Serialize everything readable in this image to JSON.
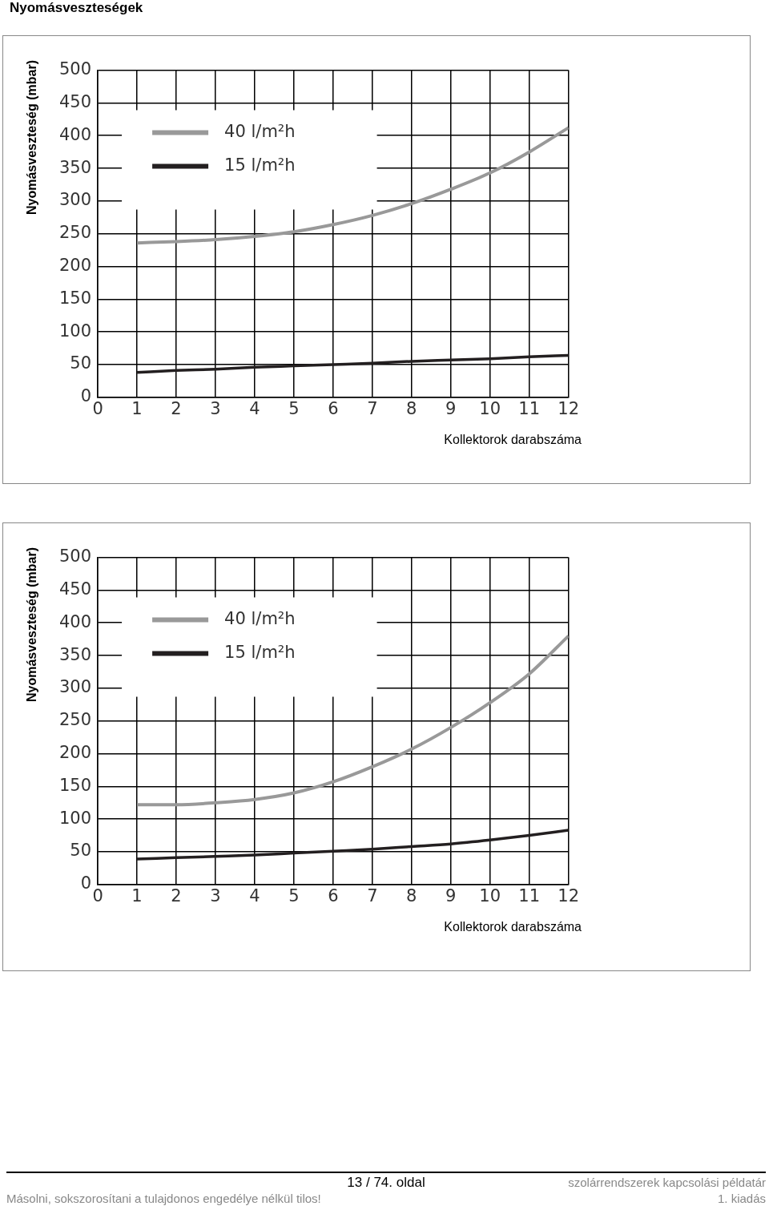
{
  "chart_data": [
    {
      "type": "line",
      "title": "Nyomásveszteségek",
      "xlabel": "Kollektorok darabszáma",
      "ylabel": "Nyomásveszteség (mbar)",
      "x": [
        1,
        2,
        3,
        4,
        5,
        6,
        7,
        8,
        9,
        10,
        11,
        12
      ],
      "series": [
        {
          "name": "40 l/m²h",
          "color": "#999999",
          "values": [
            236,
            238,
            241,
            246,
            253,
            264,
            278,
            296,
            318,
            343,
            375,
            412
          ]
        },
        {
          "name": "15 l/m²h",
          "color": "#231f20",
          "values": [
            38,
            41,
            43,
            46,
            48,
            50,
            52,
            55,
            57,
            59,
            62,
            64
          ]
        }
      ],
      "xlim": [
        0,
        12
      ],
      "xticks": [
        0,
        1,
        2,
        3,
        4,
        5,
        6,
        7,
        8,
        9,
        10,
        11,
        12
      ],
      "ylim": [
        0,
        500
      ],
      "yticks": [
        0,
        50,
        100,
        150,
        200,
        250,
        300,
        350,
        400,
        450,
        500
      ],
      "grid": true,
      "legend": "top left",
      "marker": "none",
      "line_style": "solid"
    },
    {
      "type": "line",
      "xlabel": "Kollektorok darabszáma",
      "ylabel": "Nyomásveszteség (mbar)",
      "x": [
        1,
        2,
        3,
        4,
        5,
        6,
        7,
        8,
        9,
        10,
        11,
        12
      ],
      "series": [
        {
          "name": "40 l/m²h",
          "color": "#999999",
          "values": [
            122,
            122,
            125,
            130,
            140,
            157,
            180,
            207,
            240,
            278,
            322,
            380
          ]
        },
        {
          "name": "15 l/m²h",
          "color": "#231f20",
          "values": [
            39,
            41,
            43,
            45,
            48,
            51,
            54,
            58,
            62,
            68,
            75,
            83
          ]
        }
      ],
      "xlim": [
        0,
        12
      ],
      "xticks": [
        0,
        1,
        2,
        3,
        4,
        5,
        6,
        7,
        8,
        9,
        10,
        11,
        12
      ],
      "ylim": [
        0,
        500
      ],
      "yticks": [
        0,
        50,
        100,
        150,
        200,
        250,
        300,
        350,
        400,
        450,
        500
      ],
      "grid": true,
      "legend": "top left",
      "marker": "none",
      "line_style": "solid",
      "annotations": [
        "13 / 74. oldal",
        "szolárrendszerek kapcsolási példatár",
        "Másolni, sokszorosítani a tulajdonos engedélye nélkül tilos!",
        "1. kiadás"
      ]
    }
  ]
}
